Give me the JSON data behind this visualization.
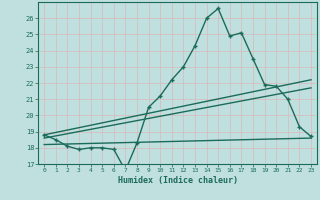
{
  "xlabel": "Humidex (Indice chaleur)",
  "bg_color": "#c0e0e0",
  "grid_color": "#e8f4f4",
  "line_color": "#1a6b5a",
  "xlim": [
    -0.5,
    23.5
  ],
  "ylim": [
    17,
    27
  ],
  "yticks": [
    17,
    18,
    19,
    20,
    21,
    22,
    23,
    24,
    25,
    26
  ],
  "xticks": [
    0,
    1,
    2,
    3,
    4,
    5,
    6,
    7,
    8,
    9,
    10,
    11,
    12,
    13,
    14,
    15,
    16,
    17,
    18,
    19,
    20,
    21,
    22,
    23
  ],
  "line1_x": [
    0,
    1,
    2,
    3,
    4,
    5,
    6,
    7,
    8,
    9,
    10,
    11,
    12,
    13,
    14,
    15,
    16,
    17,
    18,
    19,
    20,
    21,
    22,
    23
  ],
  "line1_y": [
    18.8,
    18.5,
    18.1,
    17.9,
    18.0,
    18.0,
    17.9,
    16.6,
    18.3,
    20.5,
    21.2,
    22.2,
    23.0,
    24.3,
    26.0,
    26.6,
    24.9,
    25.1,
    23.5,
    21.9,
    21.8,
    21.0,
    19.3,
    18.7
  ],
  "line2_x": [
    0,
    23
  ],
  "line2_y": [
    18.8,
    22.2
  ],
  "line3_x": [
    0,
    23
  ],
  "line3_y": [
    18.6,
    21.7
  ],
  "line4_x": [
    0,
    23
  ],
  "line4_y": [
    18.2,
    18.6
  ]
}
